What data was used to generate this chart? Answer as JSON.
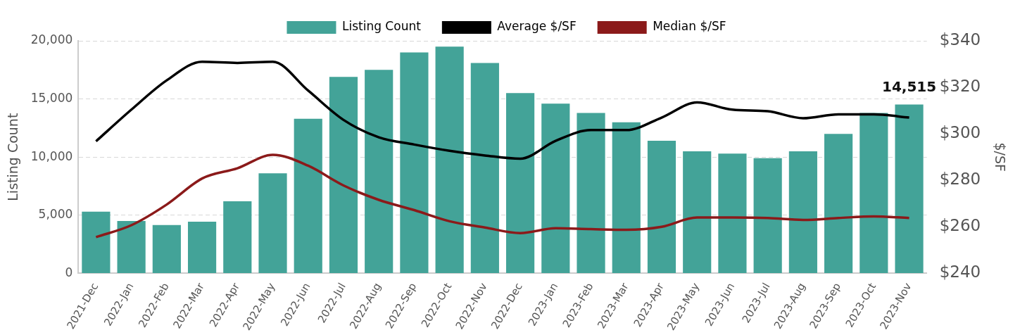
{
  "chart_data": {
    "type": "bar",
    "ylabel": "Listing Count",
    "y2label": "$/SF",
    "categories": [
      "2021-Dec",
      "2022-Jan",
      "2022-Feb",
      "2022-Mar",
      "2022-Apr",
      "2022-May",
      "2022-Jun",
      "2022-Jul",
      "2022-Aug",
      "2022-Sep",
      "2022-Oct",
      "2022-Nov",
      "2022-Dec",
      "2023-Jan",
      "2023-Feb",
      "2023-Mar",
      "2023-Apr",
      "2023-May",
      "2023-Jun",
      "2023-Jul",
      "2023-Aug",
      "2023-Sep",
      "2023-Oct",
      "2023-Nov"
    ],
    "series": [
      {
        "name": "Listing Count",
        "color": "#43a398",
        "values": [
          5300,
          4500,
          4150,
          4450,
          6200,
          8600,
          13300,
          16900,
          17500,
          19000,
          19500,
          18100,
          15500,
          14600,
          13800,
          13000,
          11400,
          10500,
          10300,
          9900,
          10500,
          12000,
          13800,
          14515
        ],
        "value_labels": [
          null,
          null,
          null,
          null,
          null,
          null,
          null,
          null,
          null,
          null,
          null,
          null,
          null,
          null,
          null,
          null,
          null,
          null,
          null,
          null,
          null,
          null,
          null,
          "14,515"
        ]
      },
      {
        "name": "Average $/SF",
        "type": "line",
        "axis": "y2",
        "color": "#000000",
        "values": [
          296.8,
          310.4,
          323,
          331,
          330.5,
          331,
          318.6,
          306,
          298.5,
          295.4,
          292.7,
          290.7,
          289.3,
          297,
          301.6,
          301.6,
          307,
          313.5,
          310.4,
          309.7,
          306.7,
          308.4,
          308.4,
          307
        ]
      },
      {
        "name": "Median $/SF",
        "type": "line",
        "axis": "y2",
        "color": "#8b1a1a",
        "values": [
          255.6,
          260.7,
          269.6,
          280.8,
          285.2,
          291,
          286.3,
          277.8,
          271.6,
          267.2,
          262.4,
          259.7,
          257.3,
          259.4,
          259,
          258.7,
          260,
          264,
          264,
          263.8,
          263,
          263.8,
          264.5,
          263.8
        ]
      }
    ],
    "ylim": [
      0,
      20000
    ],
    "yticks": [
      {
        "value": 0,
        "label": "0"
      },
      {
        "value": 5000,
        "label": "5,000"
      },
      {
        "value": 10000,
        "label": "10,000"
      },
      {
        "value": 15000,
        "label": "15,000"
      },
      {
        "value": 20000,
        "label": "20,000"
      }
    ],
    "y2lim": [
      240,
      340
    ],
    "y2ticks": [
      {
        "value": 240,
        "label": "$240"
      },
      {
        "value": 260,
        "label": "$260"
      },
      {
        "value": 280,
        "label": "$280"
      },
      {
        "value": 300,
        "label": "$300"
      },
      {
        "value": 320,
        "label": "$320"
      },
      {
        "value": 340,
        "label": "$340"
      }
    ],
    "grid": "y",
    "legend": "top",
    "marker": "none",
    "line_style": "solid"
  }
}
